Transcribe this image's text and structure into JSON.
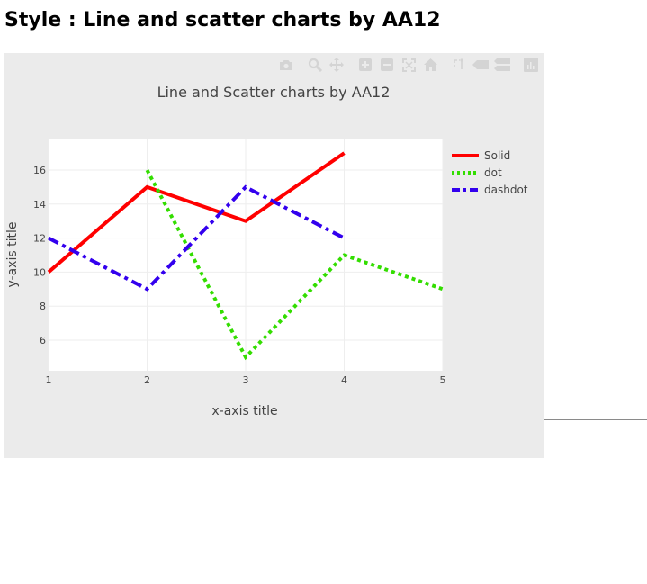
{
  "page": {
    "heading": "Style : Line and scatter charts by AA12"
  },
  "modebar": {
    "buttons": [
      {
        "name": "camera-icon",
        "title": "Download plot as a png"
      },
      {
        "name": "zoom-icon",
        "title": "Zoom"
      },
      {
        "name": "pan-icon",
        "title": "Pan"
      },
      {
        "name": "zoom-in-icon",
        "title": "Zoom in"
      },
      {
        "name": "zoom-out-icon",
        "title": "Zoom out"
      },
      {
        "name": "autoscale-icon",
        "title": "Autoscale"
      },
      {
        "name": "home-icon",
        "title": "Reset axes"
      },
      {
        "name": "spike-lines-icon",
        "title": "Toggle Spike Lines"
      },
      {
        "name": "hover-closest-icon",
        "title": "Show closest data on hover"
      },
      {
        "name": "hover-compare-icon",
        "title": "Compare data on hover"
      },
      {
        "name": "plotly-logo-icon",
        "title": "Produced with Plotly"
      }
    ],
    "icon_color": "#d4d4d4"
  },
  "chart_data": {
    "type": "line",
    "title": "Line and Scatter charts by AA12",
    "xlabel": "x-axis title",
    "ylabel": "y-axis title",
    "xlim": [
      1,
      5
    ],
    "ylim": [
      4.2,
      17.8
    ],
    "x_ticks": [
      1,
      2,
      3,
      4,
      5
    ],
    "y_ticks": [
      6,
      8,
      10,
      12,
      14,
      16
    ],
    "grid": true,
    "legend_position": "right",
    "series": [
      {
        "name": "Solid",
        "x": [
          1,
          2,
          3,
          4
        ],
        "y": [
          10,
          15,
          13,
          17
        ],
        "color": "#ff0000",
        "dash": "solid"
      },
      {
        "name": "dot",
        "x": [
          2,
          3,
          4,
          5
        ],
        "y": [
          16,
          5,
          11,
          9
        ],
        "color": "#33dd00",
        "dash": "dot"
      },
      {
        "name": "dashdot",
        "x": [
          1,
          2,
          3,
          4
        ],
        "y": [
          12,
          9,
          15,
          12
        ],
        "color": "#3300ee",
        "dash": "dashdot"
      }
    ]
  }
}
